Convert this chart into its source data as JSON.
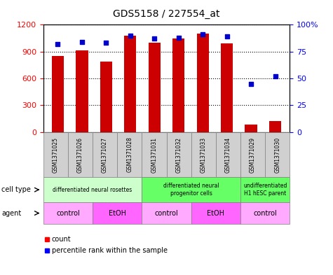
{
  "title": "GDS5158 / 227554_at",
  "samples": [
    "GSM1371025",
    "GSM1371026",
    "GSM1371027",
    "GSM1371028",
    "GSM1371031",
    "GSM1371032",
    "GSM1371033",
    "GSM1371034",
    "GSM1371029",
    "GSM1371030"
  ],
  "counts": [
    850,
    910,
    790,
    1080,
    1000,
    1050,
    1100,
    990,
    80,
    120
  ],
  "percentile_ranks": [
    82,
    84,
    83,
    90,
    87,
    88,
    91,
    89,
    45,
    52
  ],
  "ylim_left": [
    0,
    1200
  ],
  "ylim_right": [
    0,
    100
  ],
  "yticks_left": [
    0,
    300,
    600,
    900,
    1200
  ],
  "yticks_right": [
    0,
    25,
    50,
    75,
    100
  ],
  "cell_type_groups": [
    {
      "label": "differentiated neural rosettes",
      "start": 0,
      "end": 3,
      "color": "#ccffcc"
    },
    {
      "label": "differentiated neural\nprogenitor cells",
      "start": 4,
      "end": 7,
      "color": "#66ff66"
    },
    {
      "label": "undifferentiated\nH1 hESC parent",
      "start": 8,
      "end": 9,
      "color": "#66ff66"
    }
  ],
  "agent_groups": [
    {
      "label": "control",
      "start": 0,
      "end": 1,
      "color": "#ffaaff"
    },
    {
      "label": "EtOH",
      "start": 2,
      "end": 3,
      "color": "#ff66ff"
    },
    {
      "label": "control",
      "start": 4,
      "end": 5,
      "color": "#ffaaff"
    },
    {
      "label": "EtOH",
      "start": 6,
      "end": 7,
      "color": "#ff66ff"
    },
    {
      "label": "control",
      "start": 8,
      "end": 9,
      "color": "#ffaaff"
    }
  ],
  "bar_color": "#cc0000",
  "dot_color": "#0000cc",
  "label_cell_type": "cell type",
  "label_agent": "agent",
  "legend_count": "count",
  "legend_percentile": "percentile rank within the sample"
}
